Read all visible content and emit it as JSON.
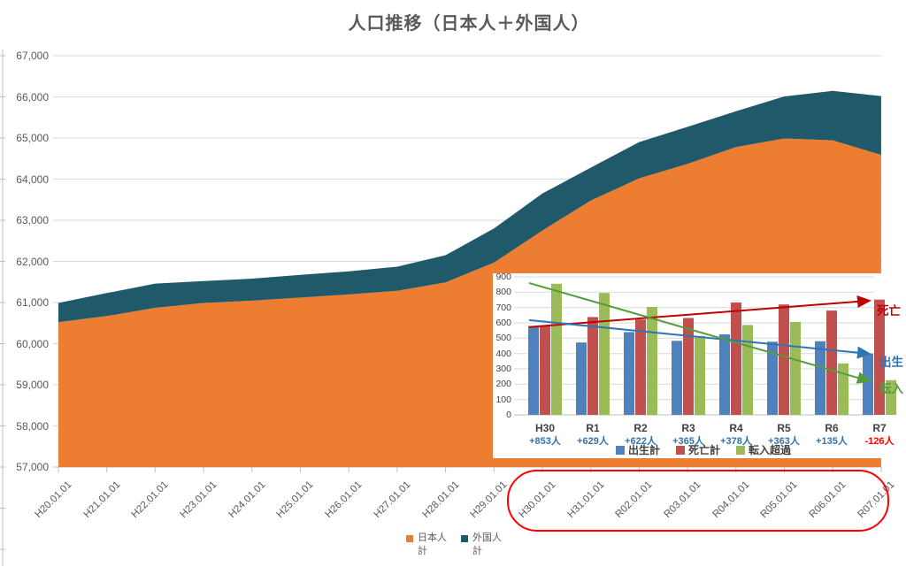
{
  "title": "人口推移（日本人＋外国人）",
  "highlight": {
    "color": "#FF0000"
  },
  "chart_data": [
    {
      "id": "population-area",
      "type": "area",
      "stacked": true,
      "title": "人口推移（日本人＋外国人）",
      "grid": true,
      "legend_position": "bottom",
      "ylim": [
        57000,
        67000
      ],
      "y_tick_step": 1000,
      "y_tick_labels": [
        "57,000",
        "58,000",
        "59,000",
        "60,000",
        "61,000",
        "62,000",
        "63,000",
        "64,000",
        "65,000",
        "66,000",
        "67,000"
      ],
      "x_labels": [
        "H20.01.01",
        "H21.01.01",
        "H22.01.01",
        "H23.01.01",
        "H24.01.01",
        "H25.01.01",
        "H26.01.01",
        "H27.01.01",
        "H28.01.01",
        "H29.01.01",
        "H30.01.01",
        "H31.01.01",
        "R02.01.01",
        "R03.01.01",
        "R04.01.01",
        "R05.01.01",
        "R06.01.01",
        "R07.01.01"
      ],
      "series": [
        {
          "name": "日本人計",
          "color": "#ED7D31",
          "values": [
            60520,
            60670,
            60870,
            60990,
            61045,
            61120,
            61195,
            61285,
            61490,
            61970,
            62750,
            63480,
            64020,
            64370,
            64780,
            64990,
            64945,
            64590
          ]
        },
        {
          "name": "外国人計",
          "color": "#20596A",
          "values": [
            470,
            560,
            590,
            530,
            535,
            550,
            565,
            585,
            660,
            830,
            900,
            800,
            880,
            900,
            870,
            1020,
            1200,
            1430
          ]
        }
      ],
      "totals": [
        60990,
        61230,
        61460,
        61520,
        61580,
        61670,
        61760,
        61870,
        62150,
        62800,
        63650,
        64280,
        64900,
        65270,
        65650,
        66010,
        66145,
        66020
      ]
    },
    {
      "id": "births-deaths-migration",
      "type": "bar",
      "grid": true,
      "legend_position": "bottom",
      "ylim": [
        0,
        900
      ],
      "y_tick_step": 100,
      "y_tick_labels": [
        "0",
        "100",
        "200",
        "300",
        "400",
        "500",
        "600",
        "700",
        "800",
        "900"
      ],
      "categories": [
        "H30",
        "R1",
        "R2",
        "R3",
        "R4",
        "R5",
        "R6",
        "R7"
      ],
      "change_labels": [
        {
          "text": "+853人",
          "color": "#2E75B6"
        },
        {
          "text": "+629人",
          "color": "#2E75B6"
        },
        {
          "text": "+622人",
          "color": "#2E75B6"
        },
        {
          "text": "+365人",
          "color": "#2E75B6"
        },
        {
          "text": "+378人",
          "color": "#2E75B6"
        },
        {
          "text": "+363人",
          "color": "#2E75B6"
        },
        {
          "text": "+135人",
          "color": "#2E75B6"
        },
        {
          "text": "-126人",
          "color": "#FF0000"
        }
      ],
      "series": [
        {
          "name": "出生計",
          "color": "#4F81BD",
          "values": [
            580,
            472,
            540,
            483,
            525,
            477,
            480,
            400
          ]
        },
        {
          "name": "死亡計",
          "color": "#C0504D",
          "values": [
            582,
            638,
            622,
            632,
            733,
            720,
            680,
            752
          ]
        },
        {
          "name": "転入超過",
          "color": "#9BBB59",
          "values": [
            855,
            795,
            704,
            514,
            586,
            606,
            335,
            226
          ]
        }
      ],
      "trend_lines": [
        {
          "label": "死亡",
          "color": "#C00000",
          "from": 573,
          "to": 745
        },
        {
          "label": "出生",
          "color": "#2E75B6",
          "from": 618,
          "to": 398
        },
        {
          "label": "転入",
          "color": "#549E39",
          "from": 860,
          "to": 220
        }
      ]
    }
  ]
}
